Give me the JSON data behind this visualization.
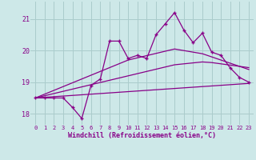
{
  "bg_color": "#cde8e8",
  "line_color": "#880088",
  "grid_color": "#aacccc",
  "xlabel": "Windchill (Refroidissement éolien,°C)",
  "xlabel_color": "#880088",
  "tick_color": "#880088",
  "ylim": [
    17.65,
    21.55
  ],
  "xlim": [
    -0.5,
    23.5
  ],
  "yticks": [
    18,
    19,
    20,
    21
  ],
  "xticks": [
    0,
    1,
    2,
    3,
    4,
    5,
    6,
    7,
    8,
    9,
    10,
    11,
    12,
    13,
    14,
    15,
    16,
    17,
    18,
    19,
    20,
    21,
    22,
    23
  ],
  "main_data": [
    18.5,
    18.5,
    18.5,
    18.5,
    18.2,
    17.85,
    18.9,
    19.1,
    20.3,
    20.3,
    19.75,
    19.85,
    19.75,
    20.5,
    20.85,
    21.2,
    20.65,
    20.25,
    20.55,
    19.95,
    19.85,
    19.45,
    19.15,
    19.0
  ],
  "trend1": [
    18.5,
    18.52,
    18.54,
    18.56,
    18.58,
    18.6,
    18.62,
    18.64,
    18.66,
    18.68,
    18.7,
    18.72,
    18.74,
    18.76,
    18.78,
    18.8,
    18.82,
    18.84,
    18.86,
    18.88,
    18.9,
    18.92,
    18.94,
    18.96
  ],
  "trend2": [
    18.5,
    18.57,
    18.64,
    18.71,
    18.78,
    18.85,
    18.92,
    18.99,
    19.06,
    19.13,
    19.2,
    19.27,
    19.34,
    19.41,
    19.48,
    19.55,
    19.58,
    19.61,
    19.64,
    19.62,
    19.58,
    19.54,
    19.5,
    19.46
  ],
  "trend3": [
    18.5,
    18.62,
    18.74,
    18.86,
    18.98,
    19.1,
    19.22,
    19.34,
    19.46,
    19.58,
    19.7,
    19.77,
    19.84,
    19.91,
    19.98,
    20.05,
    20.0,
    19.95,
    19.9,
    19.8,
    19.7,
    19.6,
    19.5,
    19.4
  ]
}
